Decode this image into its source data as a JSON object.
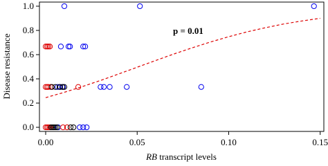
{
  "chart_data": {
    "type": "scatter",
    "annotation": "p = 0.01",
    "xlabel": [
      "RB",
      "transcript levels"
    ],
    "ylabel": "Disease resistance",
    "xlim": [
      -0.0034,
      0.152
    ],
    "ylim": [
      -0.034,
      1.034
    ],
    "xticks": [
      {
        "value": 0,
        "label": "0.00"
      },
      {
        "value": 0.05,
        "label": "0.05"
      },
      {
        "value": 0.1,
        "label": "0.10"
      },
      {
        "value": 0.15,
        "label": "0.15"
      }
    ],
    "yticks": [
      {
        "value": 0,
        "label": "0.0"
      },
      {
        "value": 0.2,
        "label": "0.2"
      },
      {
        "value": 0.4,
        "label": "0.4"
      },
      {
        "value": 0.6,
        "label": "0.6"
      },
      {
        "value": 0.8,
        "label": "0.8"
      },
      {
        "value": 1,
        "label": "1.0"
      }
    ],
    "series": [
      {
        "color": "#0000ee",
        "x": [
          0.0102,
          0.0515,
          0.1466,
          0.0083,
          0.0125,
          0.0133,
          0.0205,
          0.0216,
          0.0065,
          0.008,
          0.0095,
          0.03,
          0.0318,
          0.035,
          0.0443,
          0.085,
          0.0068,
          0.0186,
          0.0205,
          0.0224
        ],
        "values": [
          1,
          1,
          1,
          0.667,
          0.667,
          0.667,
          0.667,
          0.667,
          0.333,
          0.333,
          0.333,
          0.333,
          0.333,
          0.333,
          0.333,
          0.333,
          0,
          0,
          0,
          0
        ]
      },
      {
        "color": "#dd0000",
        "x": [
          0,
          0.0008,
          0.0015,
          0.0023,
          0,
          0.0008,
          0.0015,
          0.0027,
          0.0178,
          0,
          0.0008,
          0.0015,
          0.0023,
          0.0095,
          0.0117
        ],
        "values": [
          0.667,
          0.667,
          0.667,
          0.667,
          0.333,
          0.333,
          0.333,
          0.333,
          0.333,
          0,
          0,
          0,
          0,
          0,
          0
        ]
      },
      {
        "color": "#000000",
        "x": [
          0.0034,
          0.0053,
          0.0076,
          0.0091,
          0.0102,
          0.003,
          0.0038,
          0.0045,
          0.0053,
          0.0061,
          0.0136,
          0.0152
        ],
        "values": [
          0.333,
          0.333,
          0.333,
          0.333,
          0.333,
          0,
          0,
          0,
          0,
          0,
          0,
          0
        ]
      }
    ],
    "fit": {
      "color": "#dd0000",
      "x": [
        0,
        0.01,
        0.02,
        0.03,
        0.04,
        0.05,
        0.06,
        0.07,
        0.08,
        0.09,
        0.1,
        0.11,
        0.12,
        0.13,
        0.14,
        0.15
      ],
      "values": [
        0.245,
        0.288,
        0.336,
        0.387,
        0.441,
        0.496,
        0.551,
        0.605,
        0.656,
        0.704,
        0.748,
        0.788,
        0.822,
        0.853,
        0.878,
        0.9
      ]
    }
  }
}
